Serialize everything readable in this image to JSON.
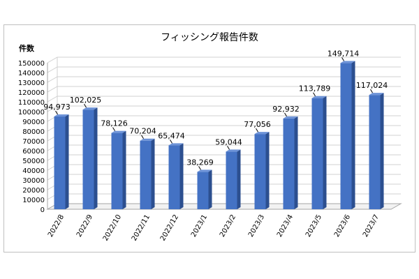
{
  "chart_data": {
    "type": "bar",
    "title": "フィッシング報告件数",
    "ylabel": "件数",
    "xlabel": "",
    "categories": [
      "2022/8",
      "2022/9",
      "2022/10",
      "2022/11",
      "2022/12",
      "2023/1",
      "2023/2",
      "2023/3",
      "2023/4",
      "2023/5",
      "2023/6",
      "2023/7"
    ],
    "values": [
      94973,
      102025,
      78126,
      70204,
      65474,
      38269,
      59044,
      77056,
      92932,
      113789,
      149714,
      117024
    ],
    "data_labels": [
      "94,973",
      "102,025",
      "78,126",
      "70,204",
      "65,474",
      "38,269",
      "59,044",
      "77,056",
      "92,932",
      "113,789",
      "149,714",
      "117,024"
    ],
    "ylim": [
      0,
      150000
    ],
    "yticks": [
      "0",
      "10000",
      "20000",
      "30000",
      "40000",
      "50000",
      "60000",
      "70000",
      "80000",
      "90000",
      "100000",
      "110000",
      "120000",
      "130000",
      "140000",
      "150000"
    ],
    "grid": true,
    "bar_color": "#4472c4",
    "bar_side_color": "#2c4f8f",
    "bar_top_color": "#6d93d8"
  }
}
